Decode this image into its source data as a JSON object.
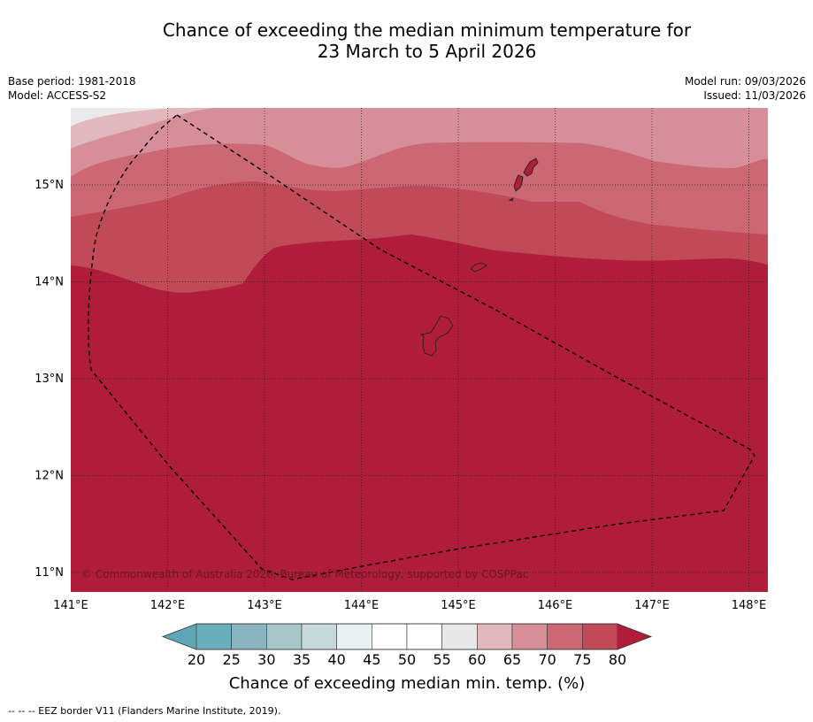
{
  "title": {
    "line1": "Chance of exceeding the median minimum temperature for",
    "line2": "23 March to 5 April 2026"
  },
  "meta": {
    "base_period": "Base period: 1981-2018",
    "model": "Model: ACCESS-S2",
    "model_run": "Model run: 09/03/2026",
    "issued": "Issued: 11/03/2026"
  },
  "map": {
    "lat_labels": [
      "15°N",
      "14°N",
      "13°N",
      "12°N",
      "11°N"
    ],
    "lon_labels": [
      "141°E",
      "142°E",
      "143°E",
      "144°E",
      "145°E",
      "146°E",
      "147°E",
      "148°E"
    ],
    "copyright": "© Commonwealth of Australia 2026, Bureau of Meteorology, supported by COSPPac"
  },
  "colorbar": {
    "ticks": [
      "20",
      "25",
      "30",
      "35",
      "40",
      "45",
      "50",
      "55",
      "60",
      "65",
      "70",
      "75",
      "80"
    ],
    "colors": [
      "#5ea5b5",
      "#6aaebc",
      "#8ab4c0",
      "#a8c7cb",
      "#c8d9dc",
      "#eaf1f2",
      "#ffffff",
      "#ffffff",
      "#e8e8e8",
      "#e0b8bd",
      "#d68f98",
      "#cc6873",
      "#c04a58",
      "#b01d3a"
    ],
    "title": "Chance of exceeding median min. temp. (%)"
  },
  "footnote": "--  --  -- EEZ border V11 (Flanders Marine Institute, 2019)."
}
